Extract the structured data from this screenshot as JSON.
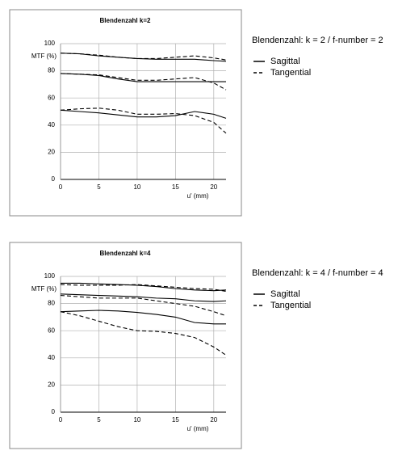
{
  "chart_data": [
    {
      "type": "line",
      "title": "Blendenzahl k=2",
      "subtitle": "Blendenzahl: k = 2 / f-number = 2",
      "ylabel": "MTF (%)",
      "xlabel": "u' (mm)",
      "xlim": [
        0,
        21.6
      ],
      "xticks": [
        0,
        5,
        10,
        15,
        20
      ],
      "ylim": [
        0,
        100
      ],
      "yticks": [
        0,
        20,
        40,
        60,
        80,
        100
      ],
      "grid": true,
      "x": [
        0,
        2.5,
        5,
        7.5,
        10,
        12.5,
        15,
        17.5,
        20,
        21.6
      ],
      "series": [
        {
          "name": "Sagittal",
          "color": "#000000",
          "values": [
            93,
            92.5,
            91,
            90,
            89,
            88.5,
            88.5,
            88.5,
            87.5,
            87
          ]
        },
        {
          "name": "Tangential",
          "color": "#000000",
          "dashed": true,
          "values": [
            93,
            92.5,
            91.5,
            90,
            89,
            89,
            90,
            91,
            89.5,
            88
          ]
        },
        {
          "name": "Sagittal",
          "color": "#000000",
          "values": [
            78,
            77.5,
            76.5,
            74,
            72,
            72,
            72,
            72,
            72,
            72
          ]
        },
        {
          "name": "Tangential",
          "color": "#000000",
          "dashed": true,
          "values": [
            78,
            77.5,
            77,
            75,
            73,
            73,
            74,
            75,
            71,
            66
          ]
        },
        {
          "name": "Sagittal",
          "color": "#000000",
          "values": [
            51,
            50,
            49,
            47.5,
            46,
            46,
            47,
            50,
            48,
            45
          ]
        },
        {
          "name": "Tangential",
          "color": "#000000",
          "dashed": true,
          "values": [
            51,
            52,
            52.5,
            51,
            48,
            48,
            48.5,
            47,
            42,
            34
          ]
        }
      ]
    },
    {
      "type": "line",
      "title": "Blendenzahl k=4",
      "subtitle": "Blendenzahl: k = 4 / f-number = 4",
      "ylabel": "MTF (%)",
      "xlabel": "u' (mm)",
      "xlim": [
        0,
        21.6
      ],
      "xticks": [
        0,
        5,
        10,
        15,
        20
      ],
      "ylim": [
        0,
        100
      ],
      "yticks": [
        0,
        20,
        40,
        60,
        80,
        100
      ],
      "grid": true,
      "x": [
        0,
        2.5,
        5,
        7.5,
        10,
        12.5,
        15,
        17.5,
        20,
        21.6
      ],
      "series": [
        {
          "name": "Sagittal",
          "color": "#000000",
          "values": [
            95,
            95,
            94.5,
            94,
            93.5,
            92.5,
            91,
            90,
            89.5,
            90
          ]
        },
        {
          "name": "Tangential",
          "color": "#000000",
          "dashed": true,
          "values": [
            94,
            93.5,
            93.5,
            93.5,
            94,
            93,
            92,
            91,
            90.5,
            89
          ]
        },
        {
          "name": "Sagittal",
          "color": "#000000",
          "values": [
            87,
            86.5,
            86,
            85.5,
            85,
            84,
            83.5,
            82,
            81.5,
            82
          ]
        },
        {
          "name": "Tangential",
          "color": "#000000",
          "dashed": true,
          "values": [
            86,
            85,
            84,
            84,
            84,
            82,
            80,
            78,
            74,
            71
          ]
        },
        {
          "name": "Sagittal",
          "color": "#000000",
          "values": [
            74,
            74.5,
            75,
            74.5,
            73.5,
            72,
            70,
            66,
            65,
            65
          ]
        },
        {
          "name": "Tangential",
          "color": "#000000",
          "dashed": true,
          "values": [
            74,
            71,
            67,
            63,
            60,
            59.5,
            58,
            55,
            48,
            42
          ]
        }
      ]
    }
  ]
}
